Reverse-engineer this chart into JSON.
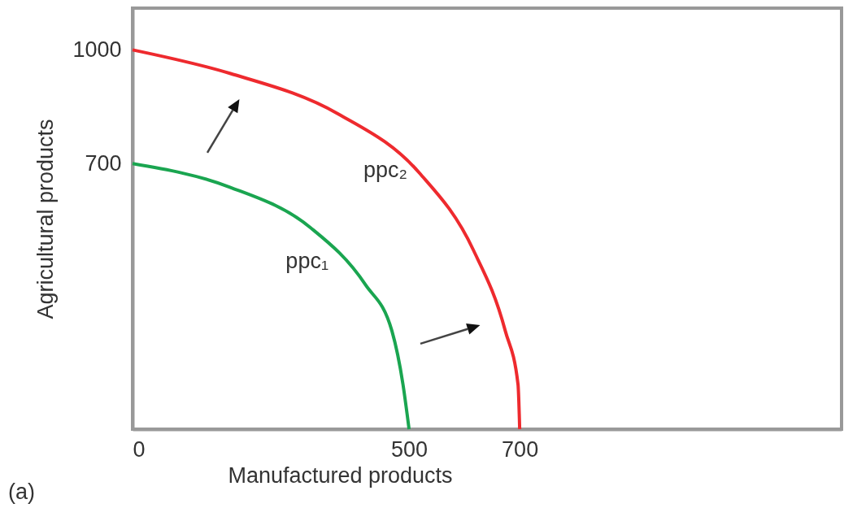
{
  "chart_data": {
    "type": "line",
    "xlabel": "Manufactured products",
    "ylabel": "Agricultural products",
    "xlim": [
      0,
      1282
    ],
    "ylim": [
      0,
      1110
    ],
    "xticks": [
      0,
      500,
      700
    ],
    "yticks": [
      700,
      1000
    ],
    "series": [
      {
        "name": "ppc₁",
        "color": "#1aa550",
        "x": [
          0,
          176,
          322,
          421,
          469,
          489,
          500
        ],
        "values": [
          700,
          638,
          531,
          381,
          259,
          118,
          0
        ]
      },
      {
        "name": "ppc₂",
        "color": "#ee2a2e",
        "x": [
          0,
          176,
          372,
          519,
          616,
          674,
          697,
          700
        ],
        "values": [
          1000,
          938,
          831,
          675,
          473,
          259,
          118,
          0
        ]
      }
    ],
    "annotations": [
      "(a)"
    ],
    "grid": false,
    "marker": "none",
    "line_style": "solid"
  }
}
